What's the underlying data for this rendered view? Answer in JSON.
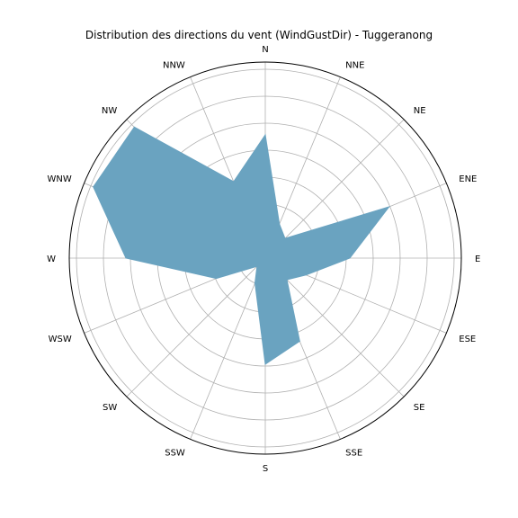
{
  "chart_data": {
    "type": "radar",
    "title": "Distribution des directions du vent (WindGustDir) - Tuggeranong",
    "categories": [
      "N",
      "NNE",
      "NE",
      "ENE",
      "E",
      "ESE",
      "SE",
      "SSE",
      "S",
      "SSW",
      "SW",
      "WSW",
      "W",
      "WNW",
      "NW",
      "NNW"
    ],
    "values": [
      137,
      41,
      31,
      149,
      94,
      49,
      34,
      100,
      118,
      30,
      13,
      59,
      155,
      207,
      206,
      92
    ],
    "rlim": [
      0,
      218
    ],
    "rticks": [
      30,
      60,
      90,
      120,
      150,
      180,
      210
    ],
    "grid": true,
    "fill_color": "#6aa3c0",
    "grid_color": "#b0b0b0"
  }
}
